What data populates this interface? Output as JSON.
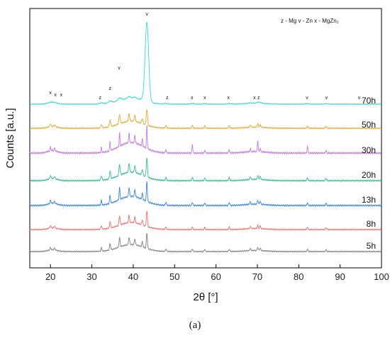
{
  "chart_data": {
    "type": "line",
    "xlabel": "2θ [°]",
    "ylabel": "Counts [a.u.]",
    "xlim": [
      15,
      100
    ],
    "x_ticks": [
      20,
      30,
      40,
      50,
      60,
      70,
      80,
      90,
      100
    ],
    "grid": false,
    "legend_text": "z - Mg   v - Zn   x - MgZn₂",
    "panel_label": "(a)",
    "series": [
      {
        "name": "5h",
        "color": "#808080"
      },
      {
        "name": "8h",
        "color": "#e8706a"
      },
      {
        "name": "13h",
        "color": "#3f86d6"
      },
      {
        "name": "20h",
        "color": "#3cb88c"
      },
      {
        "name": "30h",
        "color": "#c27fdb"
      },
      {
        "name": "50h",
        "color": "#e0a838"
      },
      {
        "name": "70h",
        "color": "#3cd4d4"
      }
    ],
    "peaks": [
      {
        "x": 20.0,
        "h": 0.35
      },
      {
        "x": 21.0,
        "h": 0.25
      },
      {
        "x": 32.3,
        "h": 0.5
      },
      {
        "x": 34.4,
        "h": 0.9
      },
      {
        "x": 36.7,
        "h": 1.3
      },
      {
        "x": 39.0,
        "h": 1.0
      },
      {
        "x": 40.4,
        "h": 0.8
      },
      {
        "x": 42.2,
        "h": 0.7
      },
      {
        "x": 43.3,
        "h": 2.2
      },
      {
        "x": 47.9,
        "h": 0.35
      },
      {
        "x": 54.3,
        "h": 0.35
      },
      {
        "x": 57.3,
        "h": 0.3
      },
      {
        "x": 63.2,
        "h": 0.35
      },
      {
        "x": 68.3,
        "h": 0.3
      },
      {
        "x": 70.1,
        "h": 0.45
      },
      {
        "x": 70.7,
        "h": 0.35
      },
      {
        "x": 82.1,
        "h": 0.3
      },
      {
        "x": 86.6,
        "h": 0.25
      }
    ],
    "annotations": [
      {
        "text": "x",
        "x": 20.0
      },
      {
        "text": "x",
        "x": 21.2
      },
      {
        "text": "x",
        "x": 22.6
      },
      {
        "text": "z",
        "x": 32.0
      },
      {
        "text": "z",
        "x": 34.4
      },
      {
        "text": "v",
        "x": 36.6
      },
      {
        "text": "v",
        "x": 43.3
      },
      {
        "text": "z",
        "x": 48.2
      },
      {
        "text": "x",
        "x": 54.2
      },
      {
        "text": "x",
        "x": 57.3
      },
      {
        "text": "x",
        "x": 63.0
      },
      {
        "text": "x",
        "x": 69.3
      },
      {
        "text": "z",
        "x": 70.3
      },
      {
        "text": "v",
        "x": 82.0
      },
      {
        "text": "v",
        "x": 86.7
      },
      {
        "text": "v",
        "x": 94.6
      }
    ]
  }
}
